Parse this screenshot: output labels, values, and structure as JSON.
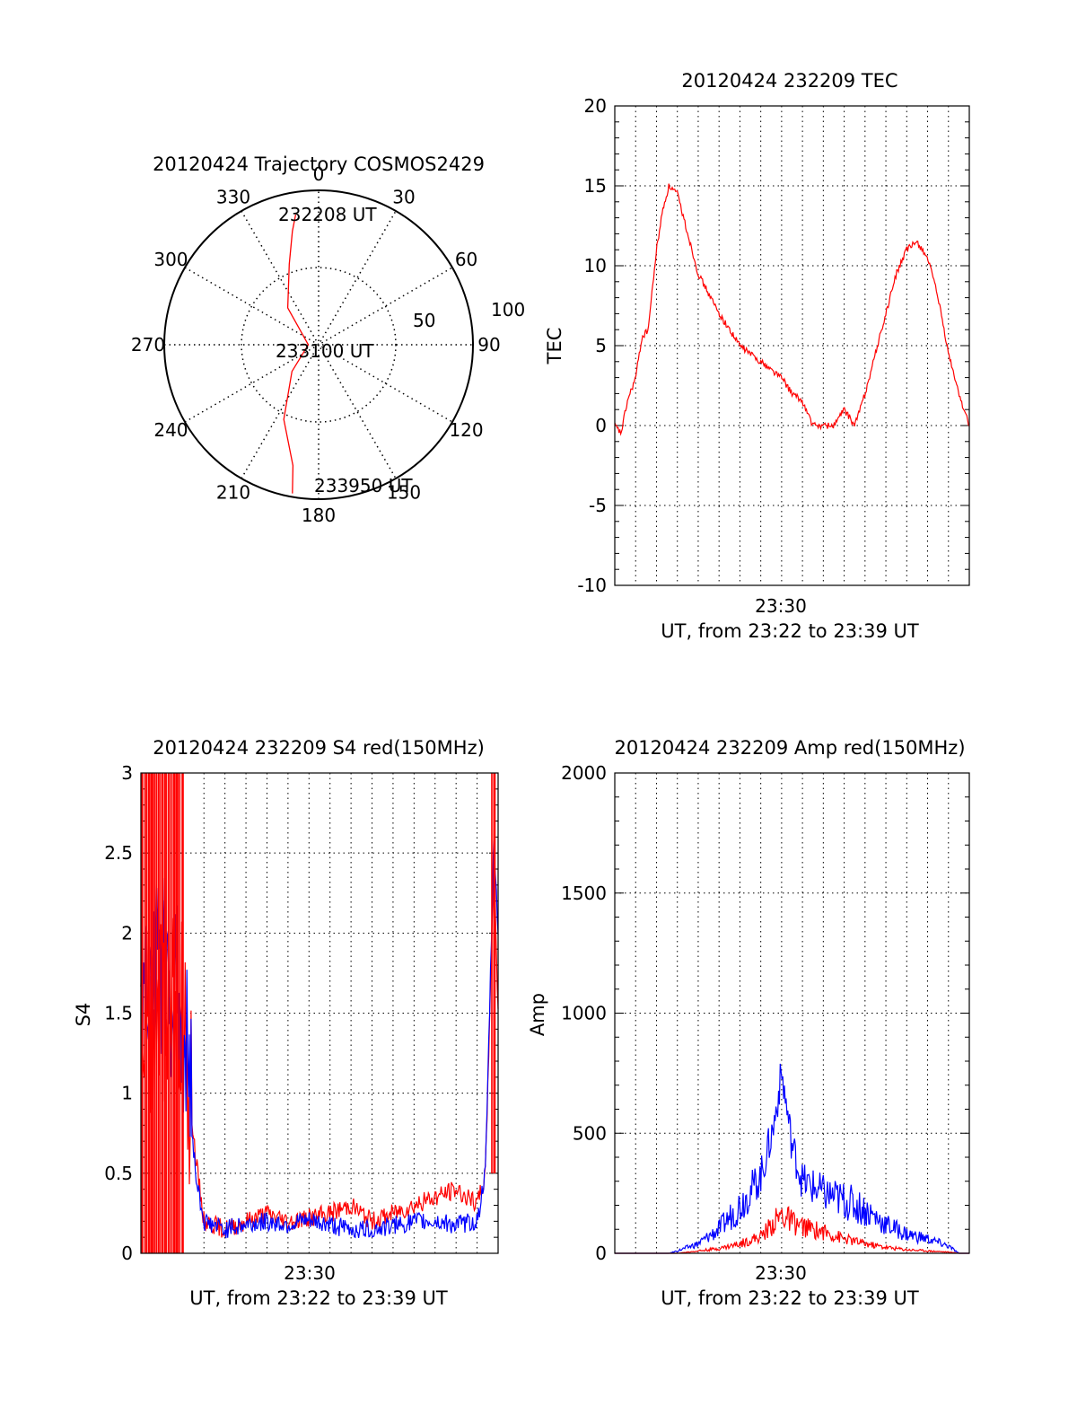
{
  "colors": {
    "red": "#ff0000",
    "blue": "#0000ff",
    "axis": "#000000",
    "grid": "#000000"
  },
  "chart_data": [
    {
      "type": "polar",
      "title": "20120424 Trajectory COSMOS2429",
      "angle_labels": [
        "0",
        "30",
        "60",
        "90",
        "120",
        "150",
        "180",
        "210",
        "240",
        "270",
        "300",
        "330"
      ],
      "radial_labels": [
        "50",
        "100"
      ],
      "radial_ticks": [
        50,
        100
      ],
      "annotations": [
        "232208 UT",
        "233100 UT",
        "233950 UT"
      ],
      "series": [
        {
          "color": "red",
          "points": [
            {
              "az": 350,
              "el": 13
            },
            {
              "az": 347,
              "el": 22
            },
            {
              "az": 340,
              "el": 40
            },
            {
              "az": 320,
              "el": 62
            },
            {
              "az": 270,
              "el": 84
            },
            {
              "az": 225,
              "el": 68
            },
            {
              "az": 205,
              "el": 42
            },
            {
              "az": 192,
              "el": 18
            },
            {
              "az": 190,
              "el": 2
            }
          ]
        }
      ]
    },
    {
      "type": "line",
      "title": "20120424 232209 TEC",
      "ylabel": "TEC",
      "xlabel": "UT, from 23:22 to 23:39 UT",
      "xtick_label": "23:30",
      "ylim": [
        -10,
        20
      ],
      "yticks": [
        "20",
        "15",
        "10",
        "5",
        "0",
        "-5",
        "-10"
      ],
      "yvals": [
        20,
        15,
        10,
        5,
        0,
        -5,
        -10
      ],
      "xlim": [
        0,
        17
      ],
      "grid": true,
      "series": [
        {
          "color": "red",
          "x": [
            0,
            0.3,
            0.6,
            1.0,
            1.3,
            1.6,
            2.0,
            2.3,
            2.6,
            3.0,
            3.5,
            4.0,
            5.0,
            6.0,
            7.0,
            8.0,
            8.5,
            9.0,
            9.5,
            10.0,
            10.5,
            11.0,
            11.5,
            12.0,
            12.5,
            13.0,
            13.5,
            14.0,
            14.5,
            15.0,
            15.5,
            16.0,
            16.5,
            17.0
          ],
          "y": [
            0,
            -0.5,
            1.5,
            3,
            5.5,
            6,
            11,
            13.5,
            15,
            14.5,
            12,
            9.5,
            7,
            5,
            4,
            3,
            2,
            1.5,
            0,
            0,
            0,
            1,
            0,
            2,
            4.5,
            7,
            9.5,
            11,
            11.5,
            10.5,
            8,
            4.5,
            2,
            0
          ]
        }
      ]
    },
    {
      "type": "line",
      "title": "20120424 232209 S4 red(150MHz)",
      "ylabel": "S4",
      "xlabel": "UT, from 23:22 to 23:39 UT",
      "xtick_label": "23:30",
      "ylim": [
        0,
        3
      ],
      "yticks": [
        "3",
        "2.5",
        "2",
        "1.5",
        "1",
        "0.5",
        "0"
      ],
      "yvals": [
        3,
        2.5,
        2,
        1.5,
        1,
        0.5,
        0
      ],
      "xlim": [
        0,
        17
      ],
      "grid": true,
      "series": [
        {
          "color": "red",
          "x": [
            0,
            1.0,
            2.0,
            2.6,
            3.0,
            4.0,
            5.0,
            6.0,
            7.0,
            8.0,
            9.0,
            10.0,
            11.0,
            12.0,
            13.0,
            14.0,
            15.0,
            16.0,
            16.4,
            16.8,
            17.0
          ],
          "y": [
            1.5,
            1.5,
            1.5,
            0.6,
            0.2,
            0.15,
            0.2,
            0.25,
            0.2,
            0.22,
            0.25,
            0.3,
            0.2,
            0.25,
            0.3,
            0.35,
            0.4,
            0.3,
            0.5,
            2.5,
            1.5
          ]
        },
        {
          "color": "blue",
          "x": [
            0,
            1.0,
            2.0,
            2.6,
            3.0,
            4.0,
            5.0,
            6.0,
            7.0,
            8.0,
            9.0,
            10.0,
            11.0,
            12.0,
            13.0,
            14.0,
            15.0,
            16.0,
            16.4,
            16.8,
            17.0
          ],
          "y": [
            1.7,
            1.8,
            1.5,
            0.5,
            0.2,
            0.15,
            0.18,
            0.2,
            0.18,
            0.2,
            0.18,
            0.15,
            0.15,
            0.17,
            0.2,
            0.2,
            0.18,
            0.2,
            0.5,
            2.6,
            2.0
          ]
        }
      ]
    },
    {
      "type": "line",
      "title": "20120424 232209 Amp red(150MHz)",
      "ylabel": "Amp",
      "xlabel": "UT, from 23:22 to 23:39 UT",
      "xtick_label": "23:30",
      "ylim": [
        0,
        2000
      ],
      "yticks": [
        "2000",
        "1500",
        "1000",
        "500",
        "0"
      ],
      "yvals": [
        2000,
        1500,
        1000,
        500,
        0
      ],
      "xlim": [
        0,
        17
      ],
      "grid": true,
      "series": [
        {
          "color": "blue",
          "x": [
            0,
            2.0,
            2.6,
            3.0,
            4.0,
            5.0,
            6.0,
            7.0,
            7.6,
            8.0,
            8.5,
            9.0,
            10.0,
            11.0,
            12.0,
            13.0,
            14.0,
            15.0,
            16.0,
            16.5,
            17.0
          ],
          "y": [
            0,
            0,
            0,
            10,
            40,
            100,
            200,
            320,
            520,
            750,
            450,
            300,
            250,
            220,
            180,
            120,
            80,
            60,
            30,
            0,
            0
          ]
        },
        {
          "color": "red",
          "x": [
            0,
            2.0,
            3.0,
            4.0,
            5.0,
            6.0,
            7.0,
            8.0,
            8.5,
            9.0,
            10.0,
            11.0,
            12.0,
            13.0,
            14.0,
            15.0,
            16.0,
            16.5,
            17.0
          ],
          "y": [
            0,
            0,
            0,
            10,
            20,
            40,
            70,
            160,
            130,
            110,
            90,
            60,
            40,
            25,
            15,
            10,
            5,
            0,
            0
          ]
        }
      ]
    }
  ]
}
